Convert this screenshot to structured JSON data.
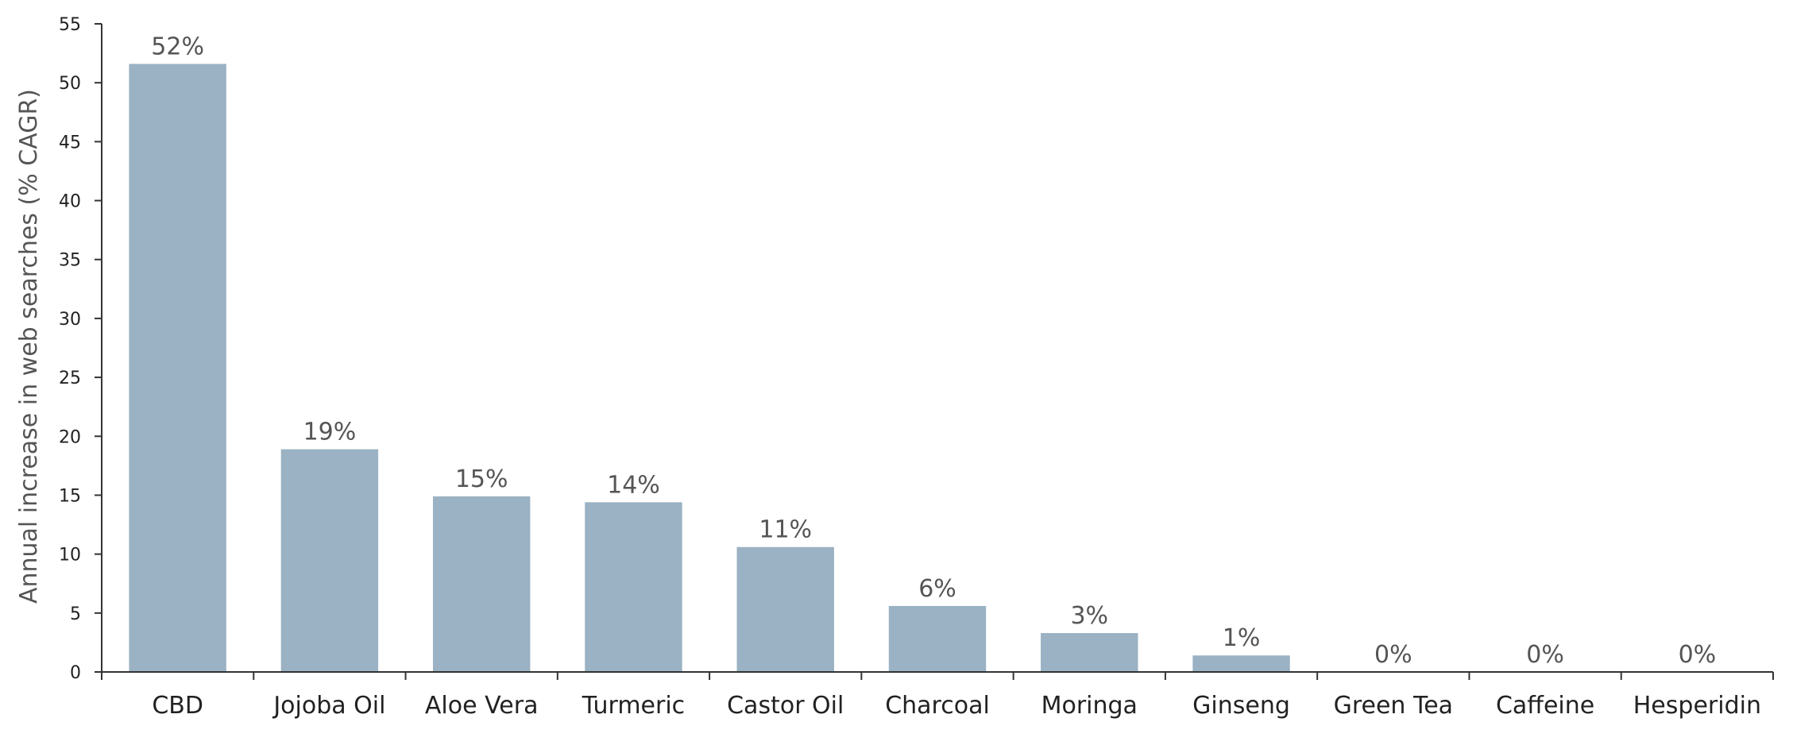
{
  "chart_data": {
    "type": "bar",
    "title": "",
    "xlabel": "",
    "ylabel": "Annual increase in web searches (% CAGR)",
    "ylim": [
      0,
      55
    ],
    "yticks": [
      0,
      5,
      10,
      15,
      20,
      25,
      30,
      35,
      40,
      45,
      50,
      55
    ],
    "grid": false,
    "categories": [
      "CBD",
      "Jojoba Oil",
      "Aloe Vera",
      "Turmeric",
      "Castor Oil",
      "Charcoal",
      "Moringa",
      "Ginseng",
      "Green Tea",
      "Caffeine",
      "Hesperidin"
    ],
    "values": [
      51.6,
      18.9,
      14.9,
      14.4,
      10.6,
      5.6,
      3.3,
      1.4,
      0,
      0,
      0
    ],
    "data_labels": [
      "52%",
      "19%",
      "15%",
      "14%",
      "11%",
      "6%",
      "3%",
      "1%",
      "0%",
      "0%",
      "0%"
    ],
    "bar_color": "#9ab2c3",
    "axis_color": "#333333"
  }
}
